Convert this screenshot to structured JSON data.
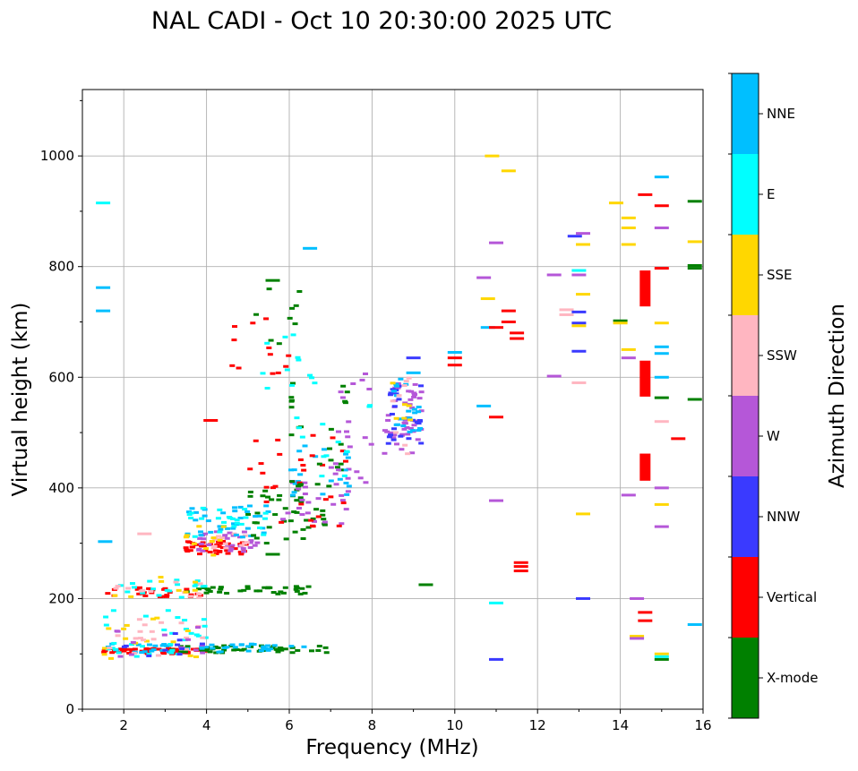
{
  "chart_data": {
    "type": "scatter",
    "title": "NAL CADI - Oct 10 20:30:00 2025 UTC",
    "xlabel": "Frequency (MHz)",
    "ylabel": "Virtual height (km)",
    "xlim": [
      1,
      16
    ],
    "ylim": [
      0,
      1120
    ],
    "x_ticks": [
      2,
      4,
      6,
      8,
      10,
      12,
      14,
      16
    ],
    "y_ticks": [
      0,
      200,
      400,
      600,
      800,
      1000
    ],
    "grid": true,
    "colorbar": {
      "label": "Azimuth Direction",
      "categories": [
        {
          "name": "X-mode",
          "color": "#008000"
        },
        {
          "name": "Vertical",
          "color": "#ff0000"
        },
        {
          "name": "NNW",
          "color": "#3a3aff"
        },
        {
          "name": "W",
          "color": "#b557d8"
        },
        {
          "name": "SSW",
          "color": "#ffb6c1"
        },
        {
          "name": "SSE",
          "color": "#ffd700"
        },
        {
          "name": "E",
          "color": "#00ffff"
        },
        {
          "name": "NNE",
          "color": "#00bfff"
        }
      ]
    },
    "clusters": [
      {
        "cat": "Vertical",
        "f0": 1.5,
        "f1": 4.0,
        "h0": 100,
        "h1": 110,
        "n": 60
      },
      {
        "cat": "X-mode",
        "f0": 3.0,
        "f1": 7.0,
        "h0": 102,
        "h1": 115,
        "n": 50
      },
      {
        "cat": "NNE",
        "f0": 1.5,
        "f1": 6.5,
        "h0": 102,
        "h1": 118,
        "n": 45
      },
      {
        "cat": "E",
        "f0": 1.5,
        "f1": 4.0,
        "h0": 95,
        "h1": 180,
        "n": 30
      },
      {
        "cat": "SSE",
        "f0": 1.5,
        "f1": 4.0,
        "h0": 88,
        "h1": 170,
        "n": 15
      },
      {
        "cat": "SSW",
        "f0": 1.5,
        "f1": 4.0,
        "h0": 95,
        "h1": 165,
        "n": 18
      },
      {
        "cat": "W",
        "f0": 1.5,
        "f1": 4.0,
        "h0": 95,
        "h1": 150,
        "n": 12
      },
      {
        "cat": "NNW",
        "f0": 1.5,
        "f1": 4.0,
        "h0": 95,
        "h1": 140,
        "n": 10
      },
      {
        "cat": "Vertical",
        "f0": 1.6,
        "f1": 4.0,
        "h0": 203,
        "h1": 220,
        "n": 25
      },
      {
        "cat": "X-mode",
        "f0": 3.5,
        "f1": 6.5,
        "h0": 208,
        "h1": 222,
        "n": 35
      },
      {
        "cat": "E",
        "f0": 1.6,
        "f1": 4.0,
        "h0": 200,
        "h1": 235,
        "n": 18
      },
      {
        "cat": "SSW",
        "f0": 1.6,
        "f1": 4.0,
        "h0": 200,
        "h1": 235,
        "n": 12
      },
      {
        "cat": "SSE",
        "f0": 1.6,
        "f1": 4.0,
        "h0": 200,
        "h1": 240,
        "n": 8
      },
      {
        "cat": "Vertical",
        "f0": 3.5,
        "f1": 5.0,
        "h0": 280,
        "h1": 305,
        "n": 40
      },
      {
        "cat": "W",
        "f0": 3.8,
        "f1": 5.3,
        "h0": 285,
        "h1": 325,
        "n": 30
      },
      {
        "cat": "SSW",
        "f0": 4.0,
        "f1": 5.0,
        "h0": 290,
        "h1": 320,
        "n": 15
      },
      {
        "cat": "NNE",
        "f0": 3.5,
        "f1": 5.5,
        "h0": 310,
        "h1": 370,
        "n": 35
      },
      {
        "cat": "E",
        "f0": 3.5,
        "f1": 5.5,
        "h0": 310,
        "h1": 365,
        "n": 25
      },
      {
        "cat": "SSE",
        "f0": 3.5,
        "f1": 4.5,
        "h0": 275,
        "h1": 340,
        "n": 10
      },
      {
        "cat": "X-mode",
        "f0": 5.0,
        "f1": 7.0,
        "h0": 300,
        "h1": 400,
        "n": 40
      },
      {
        "cat": "W",
        "f0": 5.5,
        "f1": 7.5,
        "h0": 330,
        "h1": 440,
        "n": 25
      },
      {
        "cat": "NNE",
        "f0": 6.0,
        "f1": 7.5,
        "h0": 380,
        "h1": 480,
        "n": 20
      },
      {
        "cat": "Vertical",
        "f0": 5.0,
        "f1": 7.5,
        "h0": 330,
        "h1": 500,
        "n": 30
      },
      {
        "cat": "X-mode",
        "f0": 6.0,
        "f1": 7.5,
        "h0": 400,
        "h1": 600,
        "n": 25
      },
      {
        "cat": "W",
        "f0": 7.0,
        "f1": 8.0,
        "h0": 400,
        "h1": 610,
        "n": 20
      },
      {
        "cat": "E",
        "f0": 6.0,
        "f1": 8.0,
        "h0": 400,
        "h1": 600,
        "n": 15
      },
      {
        "cat": "Vertical",
        "f0": 4.5,
        "f1": 6.0,
        "h0": 600,
        "h1": 710,
        "n": 12
      },
      {
        "cat": "E",
        "f0": 4.5,
        "f1": 6.5,
        "h0": 580,
        "h1": 720,
        "n": 10
      },
      {
        "cat": "X-mode",
        "f0": 5.0,
        "f1": 6.5,
        "h0": 560,
        "h1": 780,
        "n": 10
      },
      {
        "cat": "W",
        "f0": 8.3,
        "f1": 9.2,
        "h0": 460,
        "h1": 600,
        "n": 45
      },
      {
        "cat": "NNW",
        "f0": 8.3,
        "f1": 9.2,
        "h0": 480,
        "h1": 600,
        "n": 25
      },
      {
        "cat": "NNE",
        "f0": 8.5,
        "f1": 9.2,
        "h0": 500,
        "h1": 600,
        "n": 20
      },
      {
        "cat": "SSW",
        "f0": 8.4,
        "f1": 9.0,
        "h0": 460,
        "h1": 600,
        "n": 8
      },
      {
        "cat": "SSE",
        "f0": 8.4,
        "f1": 9.0,
        "h0": 470,
        "h1": 590,
        "n": 6
      }
    ],
    "marks": [
      {
        "cat": "E",
        "f": 1.5,
        "h": 915
      },
      {
        "cat": "NNE",
        "f": 1.5,
        "h": 762
      },
      {
        "cat": "NNE",
        "f": 1.5,
        "h": 720
      },
      {
        "cat": "NNE",
        "f": 1.55,
        "h": 303
      },
      {
        "cat": "SSW",
        "f": 2.5,
        "h": 317
      },
      {
        "cat": "Vertical",
        "f": 4.1,
        "h": 522
      },
      {
        "cat": "NNE",
        "f": 6.5,
        "h": 833
      },
      {
        "cat": "X-mode",
        "f": 5.6,
        "h": 775
      },
      {
        "cat": "X-mode",
        "f": 9.3,
        "h": 225
      },
      {
        "cat": "X-mode",
        "f": 5.6,
        "h": 280
      },
      {
        "cat": "NNE",
        "f": 9.0,
        "h": 608
      },
      {
        "cat": "NNW",
        "f": 9.0,
        "h": 635
      },
      {
        "cat": "NNE",
        "f": 10.0,
        "h": 645
      },
      {
        "cat": "Vertical",
        "f": 10.0,
        "h": 635
      },
      {
        "cat": "Vertical",
        "f": 10.0,
        "h": 622
      },
      {
        "cat": "SSE",
        "f": 10.9,
        "h": 1000
      },
      {
        "cat": "SSE",
        "f": 11.3,
        "h": 973
      },
      {
        "cat": "W",
        "f": 11.0,
        "h": 843
      },
      {
        "cat": "W",
        "f": 10.7,
        "h": 780
      },
      {
        "cat": "SSE",
        "f": 10.8,
        "h": 742
      },
      {
        "cat": "Vertical",
        "f": 11.3,
        "h": 720
      },
      {
        "cat": "Vertical",
        "f": 11.5,
        "h": 680
      },
      {
        "cat": "Vertical",
        "f": 11.5,
        "h": 670
      },
      {
        "cat": "NNE",
        "f": 10.8,
        "h": 690
      },
      {
        "cat": "Vertical",
        "f": 11.0,
        "h": 690
      },
      {
        "cat": "Vertical",
        "f": 11.3,
        "h": 700
      },
      {
        "cat": "NNE",
        "f": 10.7,
        "h": 548
      },
      {
        "cat": "Vertical",
        "f": 11.0,
        "h": 528
      },
      {
        "cat": "W",
        "f": 11.0,
        "h": 377
      },
      {
        "cat": "Vertical",
        "f": 11.6,
        "h": 265
      },
      {
        "cat": "Vertical",
        "f": 11.6,
        "h": 258
      },
      {
        "cat": "Vertical",
        "f": 11.6,
        "h": 250
      },
      {
        "cat": "E",
        "f": 11.0,
        "h": 192
      },
      {
        "cat": "NNW",
        "f": 11.0,
        "h": 90
      },
      {
        "cat": "W",
        "f": 12.4,
        "h": 785
      },
      {
        "cat": "W",
        "f": 12.4,
        "h": 602
      },
      {
        "cat": "SSW",
        "f": 12.7,
        "h": 722
      },
      {
        "cat": "SSW",
        "f": 12.7,
        "h": 713
      },
      {
        "cat": "NNW",
        "f": 12.9,
        "h": 855
      },
      {
        "cat": "W",
        "f": 13.1,
        "h": 860
      },
      {
        "cat": "SSE",
        "f": 13.1,
        "h": 840
      },
      {
        "cat": "E",
        "f": 13.0,
        "h": 793
      },
      {
        "cat": "W",
        "f": 13.0,
        "h": 785
      },
      {
        "cat": "SSE",
        "f": 13.1,
        "h": 750
      },
      {
        "cat": "NNW",
        "f": 13.0,
        "h": 718
      },
      {
        "cat": "NNW",
        "f": 13.0,
        "h": 698
      },
      {
        "cat": "SSE",
        "f": 13.0,
        "h": 693
      },
      {
        "cat": "NNW",
        "f": 13.0,
        "h": 647
      },
      {
        "cat": "SSW",
        "f": 13.0,
        "h": 590
      },
      {
        "cat": "SSE",
        "f": 13.1,
        "h": 353
      },
      {
        "cat": "NNW",
        "f": 13.1,
        "h": 200
      },
      {
        "cat": "SSE",
        "f": 13.9,
        "h": 915
      },
      {
        "cat": "SSE",
        "f": 14.2,
        "h": 888
      },
      {
        "cat": "SSE",
        "f": 14.2,
        "h": 870
      },
      {
        "cat": "SSE",
        "f": 14.2,
        "h": 840
      },
      {
        "cat": "X-mode",
        "f": 14.0,
        "h": 702
      },
      {
        "cat": "SSE",
        "f": 14.0,
        "h": 698
      },
      {
        "cat": "SSE",
        "f": 14.2,
        "h": 650
      },
      {
        "cat": "W",
        "f": 14.2,
        "h": 635
      },
      {
        "cat": "W",
        "f": 14.2,
        "h": 387
      },
      {
        "cat": "W",
        "f": 14.4,
        "h": 200
      },
      {
        "cat": "SSE",
        "f": 14.4,
        "h": 132
      },
      {
        "cat": "W",
        "f": 14.4,
        "h": 128
      },
      {
        "cat": "Vertical",
        "f": 14.6,
        "h": 930
      },
      {
        "cat": "Vertical",
        "f": 15.0,
        "h": 910
      },
      {
        "cat": "NNE",
        "f": 15.0,
        "h": 962
      },
      {
        "cat": "W",
        "f": 15.0,
        "h": 870
      },
      {
        "cat": "Vertical",
        "f": 15.0,
        "h": 797
      },
      {
        "cat": "SSE",
        "f": 15.0,
        "h": 698
      },
      {
        "cat": "NNE",
        "f": 15.0,
        "h": 655
      },
      {
        "cat": "NNE",
        "f": 15.0,
        "h": 643
      },
      {
        "cat": "NNE",
        "f": 15.0,
        "h": 600
      },
      {
        "cat": "X-mode",
        "f": 15.0,
        "h": 563
      },
      {
        "cat": "SSW",
        "f": 15.0,
        "h": 520
      },
      {
        "cat": "Vertical",
        "f": 15.4,
        "h": 489
      },
      {
        "cat": "W",
        "f": 15.0,
        "h": 400
      },
      {
        "cat": "SSE",
        "f": 15.0,
        "h": 370
      },
      {
        "cat": "W",
        "f": 15.0,
        "h": 330
      },
      {
        "cat": "Vertical",
        "f": 14.6,
        "h": 175
      },
      {
        "cat": "Vertical",
        "f": 14.6,
        "h": 160
      },
      {
        "cat": "SSE",
        "f": 15.0,
        "h": 100
      },
      {
        "cat": "E",
        "f": 15.0,
        "h": 95
      },
      {
        "cat": "X-mode",
        "f": 15.0,
        "h": 90
      },
      {
        "cat": "X-mode",
        "f": 15.8,
        "h": 918
      },
      {
        "cat": "SSE",
        "f": 15.8,
        "h": 845
      },
      {
        "cat": "X-mode",
        "f": 15.8,
        "h": 802
      },
      {
        "cat": "X-mode",
        "f": 15.8,
        "h": 797
      },
      {
        "cat": "X-mode",
        "f": 15.8,
        "h": 560
      },
      {
        "cat": "NNE",
        "f": 15.8,
        "h": 153
      }
    ],
    "blocks": [
      {
        "cat": "Vertical",
        "f": 14.6,
        "h0": 728,
        "h1": 793
      },
      {
        "cat": "Vertical",
        "f": 14.6,
        "h0": 565,
        "h1": 630
      },
      {
        "cat": "Vertical",
        "f": 14.6,
        "h0": 413,
        "h1": 462
      }
    ]
  }
}
